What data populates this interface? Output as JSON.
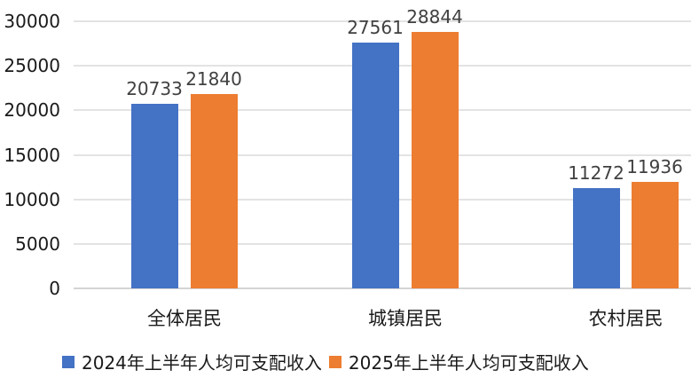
{
  "chart_data": {
    "type": "bar",
    "title": "",
    "xlabel": "",
    "ylabel": "",
    "categories": [
      "全体居民",
      "城镇居民",
      "农村居民"
    ],
    "series": [
      {
        "name": "2024年上半年人均可支配收入",
        "color": "#4472C4",
        "values": [
          20733,
          27561,
          11272
        ]
      },
      {
        "name": "2025年上半年人均可支配收入",
        "color": "#ED7D31",
        "values": [
          21840,
          28844,
          11936
        ]
      }
    ],
    "ylim": [
      0,
      30000
    ],
    "yticks": [
      0,
      5000,
      10000,
      15000,
      20000,
      25000,
      30000
    ],
    "grid": true,
    "legend_position": "bottom",
    "data_labels": true
  }
}
